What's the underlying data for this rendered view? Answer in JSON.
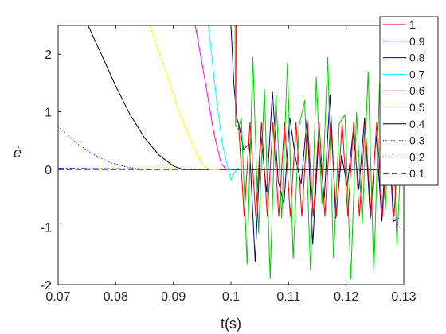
{
  "chart_data": {
    "type": "line",
    "xlabel": "t(s)",
    "ylabel": "ė",
    "xlim": [
      0.07,
      0.13
    ],
    "ylim": [
      -2,
      2.5
    ],
    "xticks": [
      "0.07",
      "0.08",
      "0.09",
      "0.1",
      "0.11",
      "0.12",
      "0.13"
    ],
    "yticks": [
      "-2",
      "-1",
      "0",
      "1",
      "2"
    ],
    "grid": false,
    "legend_position": "top-right",
    "series": [
      {
        "name": "1",
        "color": "#ff0000",
        "style": "solid",
        "x": [
          0.1009,
          0.101,
          0.1013,
          0.1023,
          0.1033,
          0.1043,
          0.1053,
          0.1063,
          0.1073,
          0.1083,
          0.1093,
          0.1103,
          0.1113,
          0.1123,
          0.1133,
          0.1143,
          0.1153,
          0.1163,
          0.1173,
          0.1183,
          0.1193,
          0.1203,
          0.1213,
          0.1223,
          0.1233,
          0.1243,
          0.1253,
          0.1263,
          0.1273,
          0.1283,
          0.1293
        ],
        "y": [
          2.5,
          0.84,
          0.82,
          -0.82,
          0.82,
          -0.82,
          0.82,
          -0.82,
          0.82,
          -0.82,
          0.82,
          -0.82,
          0.82,
          -0.82,
          0.82,
          -0.82,
          0.82,
          -0.82,
          0.82,
          -0.82,
          0.82,
          -0.82,
          0.82,
          -0.82,
          0.82,
          -0.82,
          0.82,
          -0.82,
          0.82,
          -0.82,
          0.82
        ]
      },
      {
        "name": "0.9",
        "color": "#00cc00",
        "style": "solid",
        "x": [
          0.1007,
          0.1008,
          0.1013,
          0.1018,
          0.1028,
          0.1038,
          0.1048,
          0.1058,
          0.1068,
          0.1078,
          0.1088,
          0.1098,
          0.1108,
          0.1118,
          0.1128,
          0.1138,
          0.1148,
          0.1158,
          0.1168,
          0.1178,
          0.1188,
          0.1198,
          0.1208,
          0.1218,
          0.1228,
          0.1238,
          0.1248,
          0.1258,
          0.1268,
          0.1278,
          0.1288,
          0.1298
        ],
        "y": [
          2.5,
          0.75,
          0.7,
          0.9,
          -1.65,
          1.95,
          -1.1,
          1.4,
          -1.9,
          1.3,
          -0.85,
          1.85,
          -1.55,
          0.75,
          1.2,
          -1.75,
          1.6,
          -0.6,
          1.95,
          -1.55,
          0.8,
          0.95,
          -1.9,
          1.0,
          -0.95,
          1.7,
          -1.8,
          1.5,
          -0.7,
          1.85,
          -1.3,
          0.8
        ]
      },
      {
        "name": "0.8",
        "color": "#00008b",
        "style": "solid",
        "x": [
          0.1,
          0.1005,
          0.101,
          0.1015,
          0.1022,
          0.1032,
          0.1042,
          0.1052,
          0.1062,
          0.1072,
          0.1082,
          0.1092,
          0.1102,
          0.1112,
          0.1122,
          0.1132,
          0.1142,
          0.1152,
          0.1162,
          0.1172,
          0.1182,
          0.1192,
          0.1202,
          0.1212,
          0.1222,
          0.1232,
          0.1242,
          0.1252,
          0.1262,
          0.1272,
          0.1282,
          0.1292
        ],
        "y": [
          2.5,
          1.5,
          0.9,
          0.72,
          0.35,
          0.45,
          -1.6,
          0.6,
          -0.4,
          1.35,
          -0.2,
          -0.6,
          0.9,
          0.2,
          -0.25,
          0.9,
          -1.3,
          0.5,
          -0.5,
          1.3,
          -0.85,
          0.25,
          -0.3,
          0.65,
          -0.35,
          0.9,
          -0.85,
          0.6,
          -0.9,
          1.0,
          -0.9,
          -0.85
        ]
      },
      {
        "name": "0.7",
        "color": "#00ffff",
        "style": "solid",
        "x": [
          0.0961,
          0.0975,
          0.0985,
          0.0993,
          0.1,
          0.1006,
          0.1012,
          0.1018,
          0.1028,
          0.1038
        ],
        "y": [
          2.5,
          1.2,
          0.45,
          0.1,
          -0.18,
          -0.05,
          0.02,
          0.0,
          0.0,
          0.0
        ]
      },
      {
        "name": "0.6",
        "color": "#ff00ff",
        "style": "solid",
        "x": [
          0.0938,
          0.0955,
          0.097,
          0.0983,
          0.0992,
          0.1
        ],
        "y": [
          2.5,
          1.55,
          0.65,
          0.1,
          0.0,
          0.0
        ]
      },
      {
        "name": "0.5",
        "color": "#ffff00",
        "style": "solid",
        "x": [
          0.0859,
          0.0885,
          0.091,
          0.0932,
          0.095,
          0.0962,
          0.097,
          0.098
        ],
        "y": [
          2.5,
          1.75,
          1.0,
          0.45,
          0.1,
          0.0,
          0.0,
          0.0
        ]
      },
      {
        "name": "0.4",
        "color": "#000000",
        "style": "solid",
        "x": [
          0.0752,
          0.0775,
          0.08,
          0.0825,
          0.085,
          0.0875,
          0.09,
          0.0917,
          0.1,
          0.13
        ],
        "y": [
          2.5,
          2.0,
          1.45,
          0.95,
          0.55,
          0.25,
          0.06,
          0.0,
          0.0,
          0.0
        ]
      },
      {
        "name": "0.3",
        "color": "#0000ff",
        "style": "dotted",
        "x": [
          0.07,
          0.073,
          0.076,
          0.079,
          0.082,
          0.085,
          0.088
        ],
        "y": [
          0.75,
          0.47,
          0.27,
          0.12,
          0.04,
          0.0,
          0.0
        ]
      },
      {
        "name": "0.2",
        "color": "#0000ff",
        "style": "dashdot",
        "x": [
          0.07,
          0.085,
          0.1,
          0.115,
          0.13
        ],
        "y": [
          0.02,
          0.01,
          0.0,
          0.0,
          0.0
        ]
      },
      {
        "name": "0.1",
        "color": "#0000ff",
        "style": "dashed",
        "x": [
          0.07,
          0.1,
          0.13
        ],
        "y": [
          0.0,
          0.0,
          0.0
        ]
      }
    ]
  }
}
